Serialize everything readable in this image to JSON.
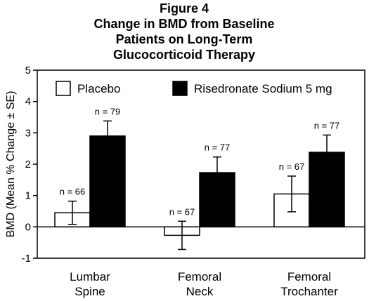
{
  "chart_data": {
    "type": "bar",
    "title_lines": [
      "Figure 4",
      "Change in BMD from Baseline",
      "Patients on Long-Term",
      "Glucocorticoid Therapy"
    ],
    "ylabel": "BMD (Mean % Change ± SE)",
    "xlabel": "",
    "ylim": [
      -1,
      5
    ],
    "yticks": [
      "-1",
      "0",
      "1",
      "2",
      "3",
      "4",
      "5"
    ],
    "categories": [
      [
        "Lumbar",
        "Spine"
      ],
      [
        "Femoral",
        "Neck"
      ],
      [
        "Femoral",
        "Trochanter"
      ]
    ],
    "legend_position": "top",
    "grid": false,
    "series": [
      {
        "name": "Placebo",
        "color": "#ffffff",
        "values": [
          0.45,
          -0.27,
          1.05
        ],
        "errors": [
          0.37,
          0.45,
          0.57
        ],
        "n_labels": [
          "n = 66",
          "n = 67",
          "n = 67"
        ]
      },
      {
        "name": "Risedronate Sodium 5 mg",
        "color": "#000000",
        "values": [
          2.9,
          1.73,
          2.38
        ],
        "errors": [
          0.48,
          0.5,
          0.55
        ],
        "n_labels": [
          "n = 79",
          "n = 77",
          "n = 77"
        ]
      }
    ]
  }
}
